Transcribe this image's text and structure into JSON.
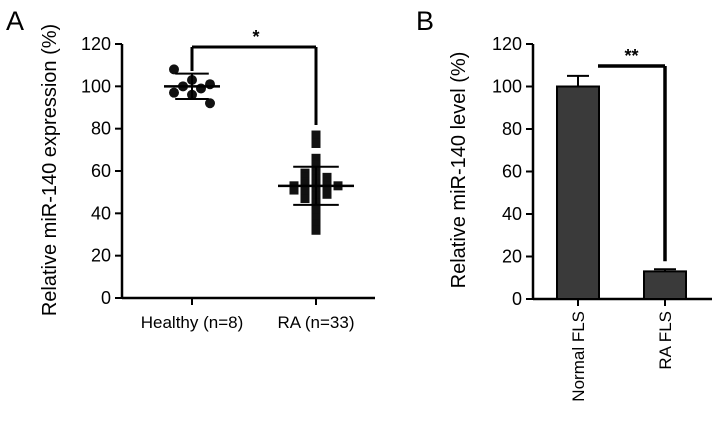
{
  "panels": {
    "a": {
      "label": "A"
    },
    "b": {
      "label": "B"
    }
  },
  "chart_data": [
    {
      "type": "scatter",
      "panel": "A",
      "xlabel": "",
      "ylabel": "Relative miR-140 expression (%)",
      "ylim": [
        0,
        120
      ],
      "yticks": [
        "0",
        "20",
        "40",
        "60",
        "80",
        "100",
        "120"
      ],
      "categories": [
        "Healthy (n=8)",
        "RA (n=33)"
      ],
      "series": [
        {
          "group": "Healthy (n=8)",
          "marker": "circle",
          "mean": 100,
          "sd": 6,
          "points": [
            108,
            103,
            101,
            100,
            99,
            97,
            96,
            92
          ]
        },
        {
          "group": "RA (n=33)",
          "marker": "square",
          "mean": 53,
          "sd": 9,
          "points": [
            77,
            73,
            66,
            63,
            61,
            60,
            59,
            58,
            57,
            57,
            56,
            55,
            55,
            54,
            54,
            53,
            53,
            53,
            52,
            52,
            51,
            51,
            50,
            49,
            49,
            48,
            47,
            45,
            43,
            41,
            38,
            35,
            32
          ]
        }
      ],
      "significance": {
        "from": "Healthy (n=8)",
        "to": "RA (n=33)",
        "label": "*"
      }
    },
    {
      "type": "bar",
      "panel": "B",
      "xlabel": "",
      "ylabel": "Relative miR-140 level (%)",
      "ylim": [
        0,
        120
      ],
      "yticks": [
        "0",
        "20",
        "40",
        "60",
        "80",
        "100",
        "120"
      ],
      "categories": [
        "Normal FLS",
        "RA FLS"
      ],
      "values": [
        100,
        13
      ],
      "errors": [
        5,
        1
      ],
      "bar_color": "#3a3a3a",
      "significance": {
        "from": "Normal FLS",
        "to": "RA FLS",
        "label": "**"
      }
    }
  ]
}
